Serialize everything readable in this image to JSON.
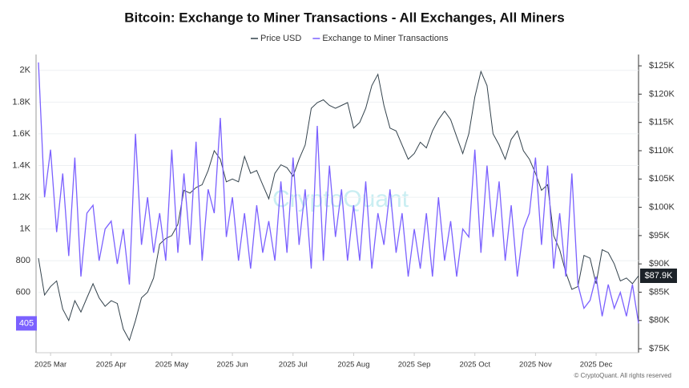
{
  "chart_data": {
    "type": "line",
    "title": "Bitcoin: Exchange to Miner Transactions - All Exchanges, All Miners",
    "watermark": "CryptoQuant",
    "footer": "© CryptoQuant. All rights reserved",
    "categories": [
      null,
      null,
      "2025 Mar",
      null,
      null,
      null,
      null,
      null,
      null,
      null,
      null,
      null,
      "2025 Apr",
      null,
      null,
      null,
      null,
      null,
      null,
      null,
      null,
      null,
      "2025 May",
      null,
      null,
      null,
      null,
      null,
      null,
      null,
      null,
      null,
      "2025 Jun",
      null,
      null,
      null,
      null,
      null,
      null,
      null,
      null,
      null,
      "2025 Jul",
      null,
      null,
      null,
      null,
      null,
      null,
      null,
      null,
      null,
      "2025 Aug",
      null,
      null,
      null,
      null,
      null,
      null,
      null,
      null,
      null,
      "2025 Sep",
      null,
      null,
      null,
      null,
      null,
      null,
      null,
      null,
      null,
      "2025 Oct",
      null,
      null,
      null,
      null,
      null,
      null,
      null,
      null,
      null,
      "2025 Nov",
      null,
      null,
      null,
      null,
      null,
      null,
      null,
      null,
      null,
      "2025 Dec",
      null,
      null,
      null,
      null,
      null,
      null,
      null
    ],
    "series": [
      {
        "name": "Price USD",
        "color": "#33424c",
        "axis": "y2",
        "end_label": "$87.9K",
        "values": [
          91000,
          84500,
          86000,
          87000,
          82000,
          80000,
          83500,
          81500,
          84000,
          86500,
          84000,
          82500,
          83500,
          83000,
          78500,
          76500,
          80000,
          84000,
          85000,
          87500,
          93500,
          94500,
          95000,
          97000,
          103000,
          102500,
          103500,
          104000,
          106500,
          110000,
          108500,
          104500,
          105000,
          104500,
          109000,
          106000,
          106500,
          104000,
          101500,
          106000,
          107500,
          107000,
          105500,
          108500,
          111000,
          117500,
          118500,
          119000,
          118000,
          117500,
          118000,
          118500,
          114000,
          115000,
          117500,
          121500,
          123500,
          118000,
          114000,
          113500,
          111000,
          108500,
          109500,
          111500,
          110500,
          113500,
          115500,
          117000,
          115500,
          112500,
          109500,
          113000,
          119500,
          124000,
          121500,
          113000,
          111000,
          108500,
          112000,
          113500,
          110000,
          108500,
          106000,
          103000,
          104000,
          95000,
          92500,
          88500,
          85500,
          86000,
          91500,
          91000,
          86500,
          92500,
          92000,
          90000,
          87000,
          87500,
          86500,
          87900
        ]
      },
      {
        "name": "Exchange to Miner Transactions",
        "color": "#7b61ff",
        "end_label": "405",
        "values": [
          2050,
          1200,
          1500,
          980,
          1350,
          830,
          1450,
          700,
          1100,
          1150,
          800,
          1000,
          1050,
          780,
          1000,
          650,
          1600,
          900,
          1200,
          850,
          1100,
          800,
          1500,
          850,
          1350,
          900,
          1550,
          800,
          1250,
          1100,
          1700,
          950,
          1200,
          800,
          1100,
          750,
          1150,
          850,
          1050,
          800,
          1300,
          850,
          1450,
          900,
          1250,
          750,
          1650,
          800,
          1400,
          950,
          1250,
          800,
          1150,
          800,
          1300,
          750,
          1100,
          900,
          1250,
          850,
          1100,
          700,
          1000,
          750,
          1100,
          700,
          1200,
          800,
          1050,
          700,
          1000,
          950,
          1500,
          850,
          1400,
          950,
          1300,
          800,
          1150,
          700,
          1000,
          1100,
          1450,
          900,
          1400,
          750,
          1100,
          700,
          1350,
          650,
          500,
          550,
          700,
          450,
          650,
          500,
          600,
          450,
          650,
          405
        ]
      }
    ],
    "ylim": [
      220,
      2100
    ],
    "yticks": [
      600,
      800,
      {
        "value": 1000,
        "label": "1K"
      },
      {
        "value": 1200,
        "label": "1.2K"
      },
      {
        "value": 1400,
        "label": "1.4K"
      },
      {
        "value": 1600,
        "label": "1.6K"
      },
      {
        "value": 1800,
        "label": "1.8K"
      },
      {
        "value": 2000,
        "label": "2K"
      }
    ],
    "y2lim": [
      74300,
      127000
    ],
    "y2ticks": [
      {
        "value": 75000,
        "label": "$75K"
      },
      {
        "value": 80000,
        "label": "$80K"
      },
      {
        "value": 85000,
        "label": "$85K"
      },
      {
        "value": 90000,
        "label": "$90K"
      },
      {
        "value": 95000,
        "label": "$95K"
      },
      {
        "value": 100000,
        "label": "$100K"
      },
      {
        "value": 105000,
        "label": "$105K"
      },
      {
        "value": 110000,
        "label": "$110K"
      },
      {
        "value": 115000,
        "label": "$115K"
      },
      {
        "value": 120000,
        "label": "$120K"
      },
      {
        "value": 125000,
        "label": "$125K"
      }
    ],
    "grid": true,
    "legend": "top"
  }
}
